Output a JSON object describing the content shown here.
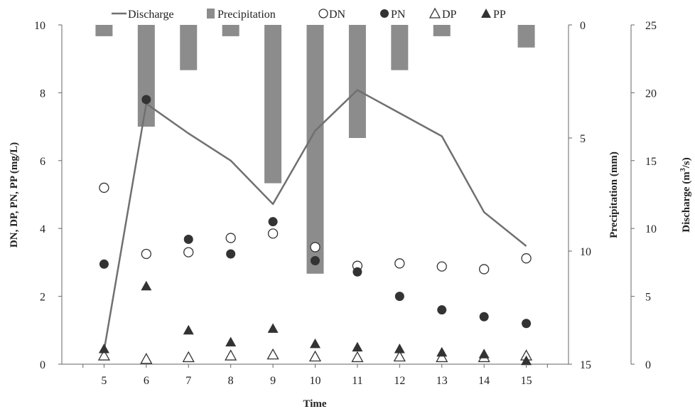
{
  "chart_data": {
    "type": "bar",
    "xlabel": "Time",
    "ylabel_left": "DN, DP, PN, PP (mg/L)",
    "ylabel_precip": "Precipitation (mm)",
    "ylabel_discharge_main": "Discharge (m",
    "ylabel_discharge_sup": "3",
    "ylabel_discharge_end": "/s)",
    "x": [
      5,
      6,
      7,
      8,
      9,
      10,
      11,
      12,
      13,
      14,
      15
    ],
    "x_tick_labels": [
      "5",
      "6",
      "7",
      "8",
      "9",
      "10",
      "11",
      "12",
      "13",
      "14",
      "15"
    ],
    "left_axis": {
      "range": [
        0,
        10
      ],
      "ticks": [
        0,
        2,
        4,
        6,
        8,
        10
      ],
      "tick_labels": [
        "0",
        "2",
        "4",
        "6",
        "8",
        "10"
      ]
    },
    "precip_axis": {
      "range": [
        0,
        15
      ],
      "inverted": true,
      "ticks": [
        0,
        5,
        10,
        15
      ],
      "tick_labels": [
        "0",
        "5",
        "10",
        "15"
      ]
    },
    "discharge_axis": {
      "range": [
        0,
        25
      ],
      "ticks": [
        0,
        5,
        10,
        15,
        20,
        25
      ],
      "tick_labels": [
        "0",
        "5",
        "10",
        "15",
        "20",
        "25"
      ]
    },
    "legend_position": "top",
    "series": [
      {
        "name": "Discharge",
        "kind": "line",
        "axis": "discharge",
        "color": "#707070",
        "values": [
          1,
          19.2,
          17,
          15,
          11.8,
          17.2,
          20.2,
          18.5,
          16.8,
          11.2,
          8.7
        ]
      },
      {
        "name": "Precipitation",
        "kind": "bar",
        "axis": "precipitation",
        "color": "#8c8c8c",
        "values": [
          0.5,
          4.5,
          2.0,
          0.5,
          7.0,
          11.0,
          5.0,
          2.0,
          0.5,
          0,
          1.0
        ]
      },
      {
        "name": "DN",
        "kind": "marker",
        "marker": "open-circle",
        "axis": "left",
        "values": [
          5.2,
          3.25,
          3.3,
          3.72,
          3.85,
          3.45,
          2.9,
          2.97,
          2.88,
          2.8,
          3.12
        ]
      },
      {
        "name": "PN",
        "kind": "marker",
        "marker": "filled-circle",
        "axis": "left",
        "values": [
          2.95,
          7.8,
          3.68,
          3.25,
          4.2,
          3.05,
          2.72,
          2.0,
          1.6,
          1.4,
          1.2
        ]
      },
      {
        "name": "DP",
        "kind": "marker",
        "marker": "open-triangle",
        "axis": "left",
        "values": [
          0.25,
          0.15,
          0.2,
          0.25,
          0.28,
          0.22,
          0.2,
          0.22,
          0.2,
          0.2,
          0.25
        ]
      },
      {
        "name": "PP",
        "kind": "marker",
        "marker": "filled-triangle",
        "axis": "left",
        "values": [
          0.45,
          2.3,
          1.0,
          0.65,
          1.05,
          0.6,
          0.5,
          0.45,
          0.35,
          0.3,
          0.1
        ]
      }
    ]
  }
}
